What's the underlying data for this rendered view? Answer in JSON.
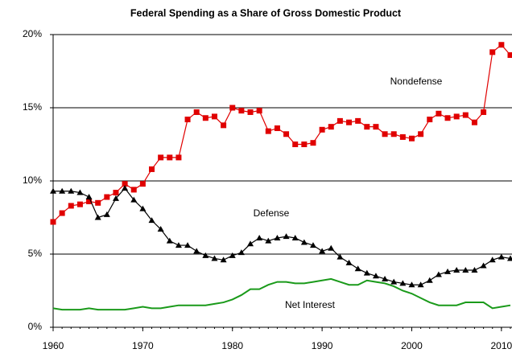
{
  "chart_data": {
    "type": "line",
    "title": "Federal Spending as a Share of Gross Domestic Product",
    "x": [
      1960,
      1961,
      1962,
      1963,
      1964,
      1965,
      1966,
      1967,
      1968,
      1969,
      1970,
      1971,
      1972,
      1973,
      1974,
      1975,
      1976,
      1977,
      1978,
      1979,
      1980,
      1981,
      1982,
      1983,
      1984,
      1985,
      1986,
      1987,
      1988,
      1989,
      1990,
      1991,
      1992,
      1993,
      1994,
      1995,
      1996,
      1997,
      1998,
      1999,
      2000,
      2001,
      2002,
      2003,
      2004,
      2005,
      2006,
      2007,
      2008,
      2009,
      2010,
      2011
    ],
    "series": [
      {
        "name": "Nondefense",
        "color": "#e00000",
        "marker": "square",
        "values": [
          7.2,
          7.8,
          8.3,
          8.4,
          8.6,
          8.5,
          8.9,
          9.2,
          9.8,
          9.4,
          9.8,
          10.8,
          11.6,
          11.6,
          11.6,
          14.2,
          14.7,
          14.3,
          14.4,
          13.8,
          15.0,
          14.8,
          14.7,
          14.8,
          13.4,
          13.6,
          13.2,
          12.5,
          12.5,
          12.6,
          13.5,
          13.7,
          14.1,
          14.0,
          14.1,
          13.7,
          13.7,
          13.2,
          13.2,
          13.0,
          12.9,
          13.2,
          14.2,
          14.6,
          14.3,
          14.4,
          14.5,
          14.0,
          14.7,
          18.8,
          19.3,
          18.6
        ]
      },
      {
        "name": "Defense",
        "color": "#000000",
        "marker": "triangle",
        "values": [
          9.3,
          9.3,
          9.3,
          9.2,
          8.9,
          7.5,
          7.7,
          8.8,
          9.5,
          8.7,
          8.1,
          7.3,
          6.7,
          5.9,
          5.6,
          5.6,
          5.2,
          4.9,
          4.7,
          4.6,
          4.9,
          5.1,
          5.7,
          6.1,
          5.9,
          6.1,
          6.2,
          6.1,
          5.8,
          5.6,
          5.2,
          5.4,
          4.8,
          4.4,
          4.0,
          3.7,
          3.5,
          3.3,
          3.1,
          3.0,
          2.9,
          2.9,
          3.2,
          3.6,
          3.8,
          3.9,
          3.9,
          3.9,
          4.2,
          4.6,
          4.8,
          4.7
        ]
      },
      {
        "name": "Net Interest",
        "color": "#1a9a1a",
        "marker": "none",
        "values": [
          1.3,
          1.2,
          1.2,
          1.2,
          1.3,
          1.2,
          1.2,
          1.2,
          1.2,
          1.3,
          1.4,
          1.3,
          1.3,
          1.4,
          1.5,
          1.5,
          1.5,
          1.5,
          1.6,
          1.7,
          1.9,
          2.2,
          2.6,
          2.6,
          2.9,
          3.1,
          3.1,
          3.0,
          3.0,
          3.1,
          3.2,
          3.3,
          3.1,
          2.9,
          2.9,
          3.2,
          3.1,
          3.0,
          2.8,
          2.5,
          2.3,
          2.0,
          1.7,
          1.5,
          1.5,
          1.5,
          1.7,
          1.7,
          1.7,
          1.3,
          1.4,
          1.5
        ]
      }
    ],
    "xlim": [
      1960,
      2011
    ],
    "xticks": [
      1960,
      1970,
      1980,
      1990,
      2000,
      2010
    ],
    "ylim": [
      0,
      20
    ],
    "yticks": [
      {
        "value": 0,
        "label": "0%"
      },
      {
        "value": 5,
        "label": "5%"
      },
      {
        "value": 10,
        "label": "10%"
      },
      {
        "value": 15,
        "label": "15%"
      },
      {
        "value": 20,
        "label": "20%"
      }
    ],
    "grid": true
  }
}
